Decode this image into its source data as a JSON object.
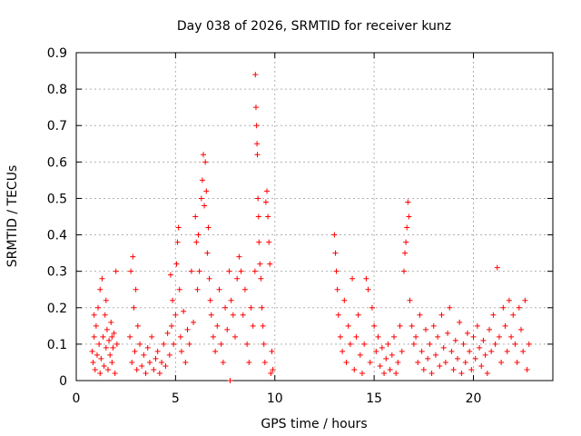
{
  "chart_data": {
    "type": "scatter",
    "title": "Day 038 of 2026, SRMTID for receiver kunz",
    "xlabel": "GPS time / hours",
    "ylabel": "SRMTID / TECUs",
    "xlim": [
      0,
      24
    ],
    "ylim": [
      0,
      0.9
    ],
    "xticks": [
      0,
      5,
      10,
      15,
      20
    ],
    "yticks": [
      0,
      0.1,
      0.2,
      0.3,
      0.4,
      0.5,
      0.6,
      0.7,
      0.8,
      0.9
    ],
    "xtick_labels": [
      "0",
      "5",
      "10",
      "15",
      "20"
    ],
    "ytick_labels": [
      "0",
      "0.1",
      "0.2",
      "0.3",
      "0.4",
      "0.5",
      "0.6",
      "0.7",
      "0.8",
      "0.9"
    ],
    "grid": true,
    "marker": "+",
    "color": "#ff0000",
    "series": [
      {
        "name": "SRMTID",
        "points": [
          [
            0.8,
            0.08
          ],
          [
            0.85,
            0.05
          ],
          [
            0.9,
            0.12
          ],
          [
            0.95,
            0.03
          ],
          [
            1.0,
            0.15
          ],
          [
            1.05,
            0.07
          ],
          [
            1.1,
            0.2
          ],
          [
            1.15,
            0.1
          ],
          [
            1.2,
            0.25
          ],
          [
            1.25,
            0.06
          ],
          [
            1.3,
            0.28
          ],
          [
            1.35,
            0.12
          ],
          [
            1.4,
            0.04
          ],
          [
            1.45,
            0.18
          ],
          [
            1.5,
            0.09
          ],
          [
            1.55,
            0.14
          ],
          [
            1.6,
            0.03
          ],
          [
            1.65,
            0.11
          ],
          [
            1.7,
            0.07
          ],
          [
            1.75,
            0.16
          ],
          [
            1.8,
            0.05
          ],
          [
            1.85,
            0.09
          ],
          [
            1.9,
            0.13
          ],
          [
            1.95,
            0.02
          ],
          [
            2.0,
            0.3
          ],
          [
            2.05,
            0.1
          ],
          [
            0.9,
            0.18
          ],
          [
            1.2,
            0.02
          ],
          [
            1.5,
            0.22
          ],
          [
            1.8,
            0.12
          ],
          [
            2.7,
            0.12
          ],
          [
            2.75,
            0.3
          ],
          [
            2.8,
            0.05
          ],
          [
            2.85,
            0.34
          ],
          [
            2.9,
            0.2
          ],
          [
            2.95,
            0.08
          ],
          [
            3.0,
            0.25
          ],
          [
            3.05,
            0.03
          ],
          [
            3.1,
            0.15
          ],
          [
            3.2,
            0.1
          ],
          [
            3.3,
            0.04
          ],
          [
            3.4,
            0.07
          ],
          [
            3.5,
            0.02
          ],
          [
            3.6,
            0.09
          ],
          [
            3.7,
            0.05
          ],
          [
            3.8,
            0.12
          ],
          [
            3.9,
            0.03
          ],
          [
            4.0,
            0.06
          ],
          [
            4.1,
            0.08
          ],
          [
            4.2,
            0.02
          ],
          [
            4.3,
            0.05
          ],
          [
            4.4,
            0.1
          ],
          [
            4.5,
            0.04
          ],
          [
            4.6,
            0.13
          ],
          [
            4.7,
            0.07
          ],
          [
            4.75,
            0.29
          ],
          [
            4.8,
            0.15
          ],
          [
            4.85,
            0.22
          ],
          [
            4.9,
            0.1
          ],
          [
            5.0,
            0.18
          ],
          [
            5.05,
            0.32
          ],
          [
            5.1,
            0.38
          ],
          [
            5.15,
            0.42
          ],
          [
            5.2,
            0.25
          ],
          [
            5.25,
            0.12
          ],
          [
            5.3,
            0.08
          ],
          [
            5.4,
            0.19
          ],
          [
            5.5,
            0.05
          ],
          [
            5.6,
            0.14
          ],
          [
            5.7,
            0.1
          ],
          [
            5.8,
            0.3
          ],
          [
            5.9,
            0.16
          ],
          [
            6.0,
            0.45
          ],
          [
            6.05,
            0.38
          ],
          [
            6.1,
            0.25
          ],
          [
            6.15,
            0.4
          ],
          [
            6.2,
            0.3
          ],
          [
            6.3,
            0.5
          ],
          [
            6.35,
            0.55
          ],
          [
            6.4,
            0.62
          ],
          [
            6.45,
            0.48
          ],
          [
            6.5,
            0.6
          ],
          [
            6.55,
            0.52
          ],
          [
            6.6,
            0.35
          ],
          [
            6.65,
            0.42
          ],
          [
            6.7,
            0.28
          ],
          [
            6.75,
            0.22
          ],
          [
            6.8,
            0.18
          ],
          [
            6.9,
            0.12
          ],
          [
            7.0,
            0.08
          ],
          [
            7.1,
            0.15
          ],
          [
            7.2,
            0.25
          ],
          [
            7.3,
            0.1
          ],
          [
            7.4,
            0.05
          ],
          [
            7.5,
            0.2
          ],
          [
            7.6,
            0.14
          ],
          [
            7.7,
            0.3
          ],
          [
            7.75,
            0.0
          ],
          [
            7.8,
            0.22
          ],
          [
            7.9,
            0.18
          ],
          [
            8.0,
            0.12
          ],
          [
            8.1,
            0.28
          ],
          [
            8.2,
            0.34
          ],
          [
            8.3,
            0.3
          ],
          [
            8.4,
            0.18
          ],
          [
            8.5,
            0.25
          ],
          [
            8.6,
            0.1
          ],
          [
            8.7,
            0.05
          ],
          [
            8.8,
            0.2
          ],
          [
            8.9,
            0.15
          ],
          [
            9.0,
            0.3
          ],
          [
            9.02,
            0.84
          ],
          [
            9.05,
            0.75
          ],
          [
            9.08,
            0.7
          ],
          [
            9.1,
            0.65
          ],
          [
            9.12,
            0.62
          ],
          [
            9.15,
            0.5
          ],
          [
            9.18,
            0.45
          ],
          [
            9.2,
            0.38
          ],
          [
            9.25,
            0.32
          ],
          [
            9.3,
            0.28
          ],
          [
            9.35,
            0.2
          ],
          [
            9.4,
            0.15
          ],
          [
            9.45,
            0.1
          ],
          [
            9.5,
            0.05
          ],
          [
            9.55,
            0.49
          ],
          [
            9.6,
            0.52
          ],
          [
            9.65,
            0.45
          ],
          [
            9.7,
            0.38
          ],
          [
            9.75,
            0.32
          ],
          [
            9.8,
            0.02
          ],
          [
            9.85,
            0.08
          ],
          [
            9.9,
            0.03
          ],
          [
            13.0,
            0.4
          ],
          [
            13.05,
            0.35
          ],
          [
            13.1,
            0.3
          ],
          [
            13.15,
            0.25
          ],
          [
            13.2,
            0.18
          ],
          [
            13.3,
            0.12
          ],
          [
            13.4,
            0.08
          ],
          [
            13.5,
            0.22
          ],
          [
            13.6,
            0.05
          ],
          [
            13.7,
            0.15
          ],
          [
            13.8,
            0.1
          ],
          [
            13.9,
            0.28
          ],
          [
            14.0,
            0.03
          ],
          [
            14.1,
            0.12
          ],
          [
            14.2,
            0.18
          ],
          [
            14.3,
            0.07
          ],
          [
            14.4,
            0.02
          ],
          [
            14.5,
            0.1
          ],
          [
            14.6,
            0.28
          ],
          [
            14.7,
            0.25
          ],
          [
            14.8,
            0.05
          ],
          [
            14.9,
            0.2
          ],
          [
            15.0,
            0.15
          ],
          [
            15.1,
            0.08
          ],
          [
            15.2,
            0.12
          ],
          [
            15.3,
            0.04
          ],
          [
            15.4,
            0.09
          ],
          [
            15.5,
            0.02
          ],
          [
            15.6,
            0.06
          ],
          [
            15.7,
            0.1
          ],
          [
            15.8,
            0.03
          ],
          [
            15.9,
            0.07
          ],
          [
            16.0,
            0.12
          ],
          [
            16.1,
            0.02
          ],
          [
            16.2,
            0.05
          ],
          [
            16.3,
            0.15
          ],
          [
            16.4,
            0.08
          ],
          [
            16.5,
            0.3
          ],
          [
            16.55,
            0.35
          ],
          [
            16.6,
            0.38
          ],
          [
            16.65,
            0.42
          ],
          [
            16.7,
            0.49
          ],
          [
            16.75,
            0.45
          ],
          [
            16.8,
            0.22
          ],
          [
            16.9,
            0.15
          ],
          [
            17.0,
            0.1
          ],
          [
            17.1,
            0.12
          ],
          [
            17.2,
            0.05
          ],
          [
            17.3,
            0.18
          ],
          [
            17.4,
            0.08
          ],
          [
            17.5,
            0.03
          ],
          [
            17.6,
            0.14
          ],
          [
            17.7,
            0.06
          ],
          [
            17.8,
            0.1
          ],
          [
            17.9,
            0.02
          ],
          [
            18.0,
            0.15
          ],
          [
            18.1,
            0.07
          ],
          [
            18.2,
            0.12
          ],
          [
            18.3,
            0.04
          ],
          [
            18.4,
            0.18
          ],
          [
            18.5,
            0.09
          ],
          [
            18.6,
            0.05
          ],
          [
            18.7,
            0.13
          ],
          [
            18.8,
            0.2
          ],
          [
            18.9,
            0.08
          ],
          [
            19.0,
            0.03
          ],
          [
            19.1,
            0.11
          ],
          [
            19.2,
            0.06
          ],
          [
            19.3,
            0.16
          ],
          [
            19.4,
            0.02
          ],
          [
            19.5,
            0.1
          ],
          [
            19.6,
            0.05
          ],
          [
            19.7,
            0.13
          ],
          [
            19.8,
            0.08
          ],
          [
            19.9,
            0.03
          ],
          [
            20.0,
            0.12
          ],
          [
            20.1,
            0.06
          ],
          [
            20.2,
            0.15
          ],
          [
            20.3,
            0.09
          ],
          [
            20.4,
            0.04
          ],
          [
            20.5,
            0.11
          ],
          [
            20.6,
            0.07
          ],
          [
            20.7,
            0.02
          ],
          [
            20.8,
            0.14
          ],
          [
            20.9,
            0.08
          ],
          [
            21.0,
            0.18
          ],
          [
            21.1,
            0.1
          ],
          [
            21.2,
            0.31
          ],
          [
            21.3,
            0.12
          ],
          [
            21.4,
            0.05
          ],
          [
            21.5,
            0.2
          ],
          [
            21.6,
            0.15
          ],
          [
            21.7,
            0.08
          ],
          [
            21.8,
            0.22
          ],
          [
            21.9,
            0.12
          ],
          [
            22.0,
            0.18
          ],
          [
            22.1,
            0.1
          ],
          [
            22.2,
            0.05
          ],
          [
            22.3,
            0.2
          ],
          [
            22.4,
            0.14
          ],
          [
            22.5,
            0.08
          ],
          [
            22.6,
            0.22
          ],
          [
            22.7,
            0.03
          ],
          [
            22.8,
            0.1
          ]
        ]
      }
    ]
  }
}
